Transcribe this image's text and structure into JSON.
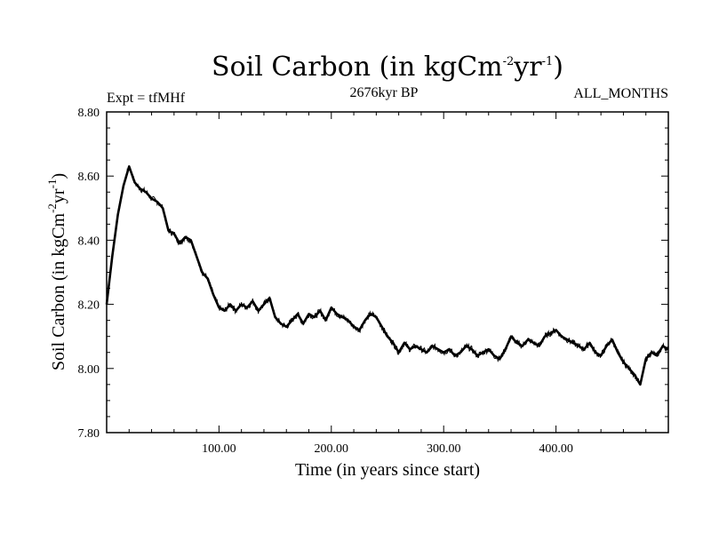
{
  "header": {
    "title": "Soil Carbon (in kgCm",
    "title_sup1": "-2",
    "title_mid": "yr",
    "title_sup2": "-1",
    "title_end": ")",
    "left": "Expt = tfMHf",
    "center": "2676kyr BP",
    "right": "ALL_MONTHS"
  },
  "axes": {
    "xlabel": "Time (in years since start)",
    "ylabel": "Soil Carbon (in kgCm",
    "ylabel_sup1": "-2",
    "ylabel_mid": "yr",
    "ylabel_sup2": "-1",
    "ylabel_end": ")"
  },
  "colors": {
    "line": "#000000",
    "background": "#ffffff"
  },
  "chart_data": {
    "type": "line",
    "title": "Soil Carbon (in kgCm-2yr-1)",
    "xlabel": "Time (in years since start)",
    "ylabel": "Soil Carbon (in kgCm-2yr-1)",
    "xlim": [
      0,
      500
    ],
    "ylim": [
      7.8,
      8.8
    ],
    "xticks": [
      100,
      200,
      300,
      400
    ],
    "xtick_labels": [
      "100.00",
      "200.00",
      "300.00",
      "400.00"
    ],
    "yticks": [
      7.8,
      8.0,
      8.2,
      8.4,
      8.6,
      8.8
    ],
    "ytick_labels": [
      "7.80",
      "8.00",
      "8.20",
      "8.40",
      "8.60",
      "8.80"
    ],
    "grid": false,
    "series": [
      {
        "name": "Soil Carbon",
        "x": [
          0,
          5,
          10,
          15,
          20,
          25,
          30,
          35,
          40,
          45,
          50,
          55,
          60,
          65,
          70,
          75,
          80,
          85,
          90,
          95,
          100,
          105,
          110,
          115,
          120,
          125,
          130,
          135,
          140,
          145,
          150,
          155,
          160,
          165,
          170,
          175,
          180,
          185,
          190,
          195,
          200,
          205,
          210,
          215,
          220,
          225,
          230,
          235,
          240,
          245,
          250,
          255,
          260,
          265,
          270,
          275,
          280,
          285,
          290,
          295,
          300,
          305,
          310,
          315,
          320,
          325,
          330,
          335,
          340,
          345,
          350,
          355,
          360,
          365,
          370,
          375,
          380,
          385,
          390,
          395,
          400,
          405,
          410,
          415,
          420,
          425,
          430,
          435,
          440,
          445,
          450,
          455,
          460,
          465,
          470,
          475,
          480,
          485,
          490,
          495,
          500
        ],
        "y": [
          8.2,
          8.35,
          8.48,
          8.57,
          8.63,
          8.58,
          8.56,
          8.55,
          8.53,
          8.52,
          8.5,
          8.43,
          8.42,
          8.39,
          8.41,
          8.4,
          8.35,
          8.3,
          8.28,
          8.23,
          8.19,
          8.18,
          8.2,
          8.18,
          8.2,
          8.19,
          8.21,
          8.18,
          8.2,
          8.22,
          8.16,
          8.14,
          8.13,
          8.15,
          8.17,
          8.14,
          8.17,
          8.16,
          8.18,
          8.15,
          8.19,
          8.17,
          8.16,
          8.15,
          8.13,
          8.12,
          8.15,
          8.17,
          8.16,
          8.13,
          8.1,
          8.08,
          8.05,
          8.08,
          8.06,
          8.07,
          8.06,
          8.05,
          8.07,
          8.06,
          8.05,
          8.06,
          8.04,
          8.05,
          8.07,
          8.06,
          8.04,
          8.05,
          8.06,
          8.04,
          8.03,
          8.06,
          8.1,
          8.08,
          8.07,
          8.09,
          8.08,
          8.07,
          8.1,
          8.11,
          8.12,
          8.1,
          8.09,
          8.08,
          8.07,
          8.06,
          8.08,
          8.05,
          8.04,
          8.07,
          8.09,
          8.05,
          8.02,
          8.0,
          7.98,
          7.95,
          8.03,
          8.05,
          8.04,
          8.07,
          8.06
        ]
      }
    ]
  }
}
